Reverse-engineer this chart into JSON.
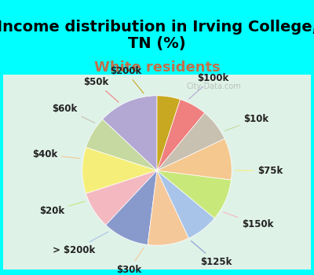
{
  "title": "Income distribution in Irving College,\nTN (%)",
  "subtitle": "White residents",
  "title_color": "#000000",
  "subtitle_color": "#c0704a",
  "background_top": "#00ffff",
  "background_bottom": "#00ffff",
  "chart_bg": "#e8f5e9",
  "watermark": "City-Data.com",
  "labels": [
    "$100k",
    "$10k",
    "$75k",
    "$150k",
    "$125k",
    "$30k",
    "> $200k",
    "$20k",
    "$40k",
    "$60k",
    "$50k",
    "$200k"
  ],
  "values": [
    13,
    7,
    10,
    8,
    10,
    9,
    7,
    9,
    9,
    7,
    6,
    5
  ],
  "colors": [
    "#b3a8d4",
    "#c5d9a0",
    "#f5ef7a",
    "#f4b8c0",
    "#8899cc",
    "#f5c89a",
    "#a8c4e8",
    "#c8e87a",
    "#f5c890",
    "#c8c0b0",
    "#f08080",
    "#c8a820"
  ],
  "startangle": 90,
  "label_fontsize": 8.5,
  "title_fontsize": 14,
  "subtitle_fontsize": 13
}
